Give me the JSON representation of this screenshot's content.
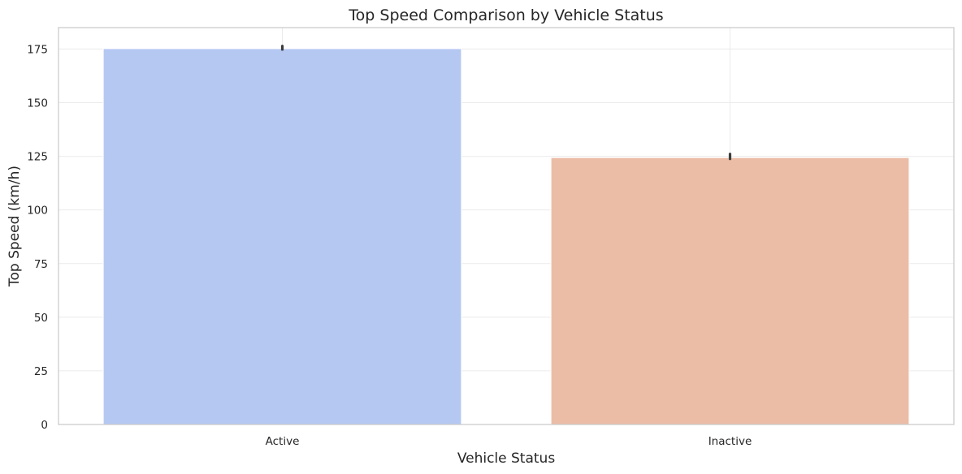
{
  "chart_data": {
    "type": "bar",
    "title": "Top Speed Comparison by Vehicle Status",
    "xlabel": "Vehicle Status",
    "ylabel": "Top Speed (km/h)",
    "categories": [
      "Active",
      "Inactive"
    ],
    "values": [
      175.2,
      124.4
    ],
    "error_low": [
      174.8,
      123.8
    ],
    "error_high": [
      176.4,
      126.1
    ],
    "colors": [
      "#b5c8f2",
      "#ebbca6"
    ],
    "ylim": [
      0,
      185
    ],
    "yticks": [
      0,
      25,
      50,
      75,
      100,
      125,
      150,
      175
    ],
    "grid": true,
    "legend": "none"
  }
}
